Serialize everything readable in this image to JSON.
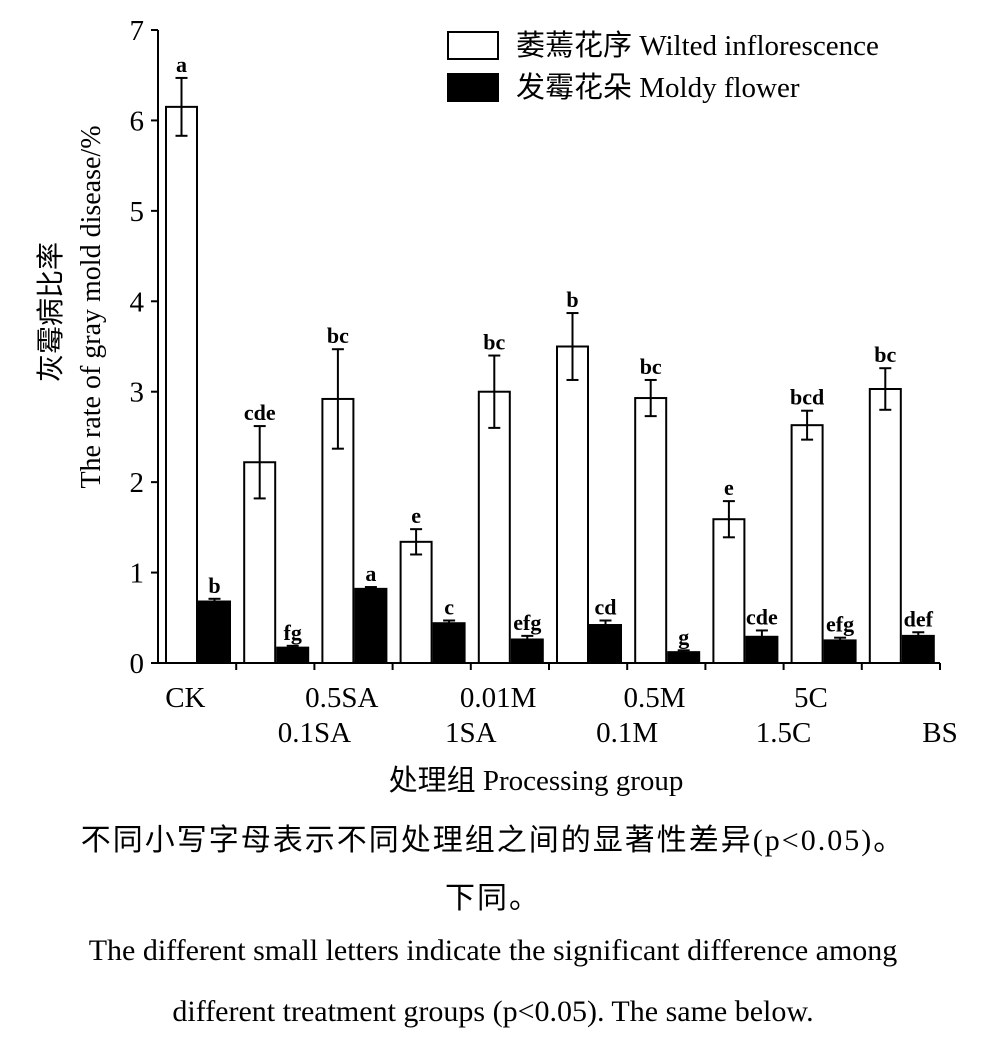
{
  "chart_data": {
    "type": "bar",
    "categories": [
      "CK",
      "0.1SA",
      "0.5SA",
      "1SA",
      "0.01M",
      "0.1M",
      "0.5M",
      "1.5C",
      "5C",
      "BS"
    ],
    "series": [
      {
        "name": "萎蔫花序 Wilted inflorescence",
        "fill": "#ffffff",
        "values": [
          6.15,
          2.22,
          2.92,
          1.34,
          3.0,
          3.5,
          2.93,
          1.59,
          2.63,
          3.03
        ],
        "errors": [
          0.32,
          0.4,
          0.55,
          0.14,
          0.4,
          0.37,
          0.2,
          0.2,
          0.16,
          0.23
        ],
        "letters": [
          "a",
          "cde",
          "bc",
          "e",
          "bc",
          "b",
          "bc",
          "e",
          "bcd",
          "bc"
        ]
      },
      {
        "name": "发霉花朵 Moldy flower",
        "fill": "#000000",
        "values": [
          0.68,
          0.17,
          0.82,
          0.44,
          0.26,
          0.42,
          0.12,
          0.29,
          0.25,
          0.3
        ],
        "errors": [
          0.03,
          0.02,
          0.02,
          0.03,
          0.04,
          0.05,
          0.02,
          0.07,
          0.03,
          0.04
        ],
        "letters": [
          "b",
          "fg",
          "a",
          "c",
          "efg",
          "cd",
          "g",
          "cde",
          "efg",
          "def"
        ]
      }
    ],
    "ylim": [
      0,
      7
    ],
    "yticks": [
      0,
      1,
      2,
      3,
      4,
      5,
      6,
      7
    ],
    "ylabel_zh": "灰霉病比率",
    "ylabel_en": "The rate of gray mold disease/%",
    "xlabel": "处理组 Processing group",
    "legend_position": "top-right",
    "grid": false
  },
  "caption": {
    "zh_line1": "不同小写字母表示不同处理组之间的显著性差异(p<0.05)。",
    "zh_line2": "下同。",
    "en_line1": "The different small letters indicate the significant difference among",
    "en_line2": "different treatment groups (p<0.05). The same below."
  }
}
